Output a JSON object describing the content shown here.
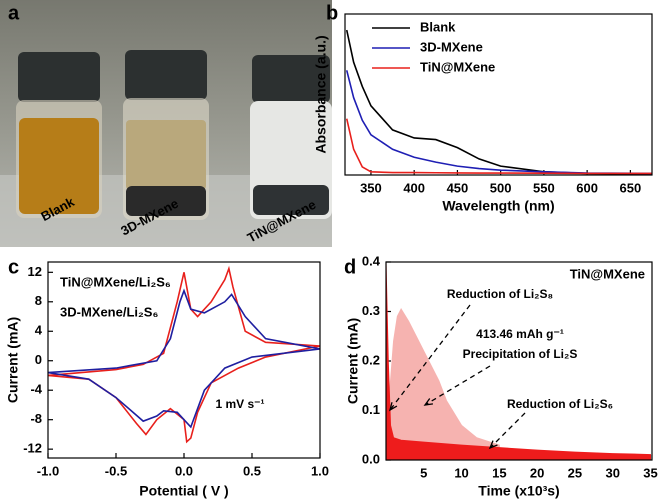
{
  "photo": {
    "panel": "a",
    "labels": [
      "Blank",
      "3D-MXene",
      "TiN@MXene"
    ],
    "label_colors": [
      "#111111",
      "#1a2fb0",
      "#c0182a"
    ]
  },
  "chart_data": [
    {
      "type": "line",
      "panel": "b",
      "x_label": "Wavelength (nm)",
      "y_label": "Absorbance (a.u.)",
      "x": [
        322,
        330,
        340,
        350,
        375,
        400,
        425,
        450,
        475,
        500,
        550,
        600,
        675
      ],
      "xlim": [
        320,
        675
      ],
      "xticks": [
        350,
        400,
        450,
        500,
        550,
        600,
        650
      ],
      "ylim": [
        0,
        1
      ],
      "series": [
        {
          "name": "Blank",
          "color": "#000000",
          "values": [
            0.9,
            0.7,
            0.55,
            0.43,
            0.28,
            0.23,
            0.22,
            0.17,
            0.1,
            0.055,
            0.02,
            0.01,
            0.005
          ]
        },
        {
          "name": "3D-MXene",
          "color": "#1f1fb4",
          "values": [
            0.65,
            0.48,
            0.34,
            0.25,
            0.16,
            0.11,
            0.08,
            0.055,
            0.04,
            0.03,
            0.02,
            0.012,
            0.01
          ]
        },
        {
          "name": "TiN@MXene",
          "color": "#e8201c",
          "values": [
            0.35,
            0.16,
            0.05,
            0.02,
            0.015,
            0.015,
            0.014,
            0.013,
            0.012,
            0.012,
            0.011,
            0.01,
            0.01
          ]
        }
      ]
    },
    {
      "type": "line",
      "panel": "c",
      "x_label": "Potential ( V )",
      "y_label": "Current (mA)",
      "xlim": [
        -1,
        1
      ],
      "xticks": [
        {
          "value": -1,
          "label": "-1.0"
        },
        -0.5,
        {
          "value": 0,
          "label": "0.0"
        },
        0.5,
        {
          "value": 1,
          "label": "1.0"
        }
      ],
      "ylim": [
        -13.2,
        13.4
      ],
      "yticks": [
        12,
        8,
        4,
        0,
        -4,
        -8,
        -12
      ],
      "annotations": [
        "1 mV s⁻¹"
      ],
      "series": [
        {
          "name": "TiN@MXene/Li₂S₆",
          "color": "#e8201c",
          "x": [
            -1,
            -0.5,
            -0.3,
            -0.15,
            -0.05,
            0,
            0.05,
            0.1,
            0.2,
            0.3,
            0.33,
            0.36,
            0.45,
            0.6,
            1,
            0.6,
            0.4,
            0.2,
            0.1,
            0.05,
            0.02,
            0,
            -0.1,
            -0.2,
            -0.28,
            -0.35,
            -0.5,
            -0.7,
            -1
          ],
          "values": [
            -2,
            -1.2,
            -0.5,
            1,
            8,
            12,
            7,
            6,
            8,
            11,
            12.5,
            10,
            4,
            2.5,
            2,
            0.5,
            -1,
            -3,
            -7,
            -10.5,
            -11,
            -8,
            -6.5,
            -8,
            -10,
            -8.5,
            -5,
            -2.5,
            -2
          ]
        },
        {
          "name": "3D-MXene/Li₂S₆",
          "color": "#1f1fa0",
          "x": [
            -1,
            -0.5,
            -0.2,
            -0.1,
            -0.03,
            0,
            0.05,
            0.15,
            0.3,
            0.35,
            0.45,
            0.6,
            1,
            0.5,
            0.3,
            0.15,
            0.05,
            0,
            -0.05,
            -0.15,
            -0.2,
            -0.3,
            -0.5,
            -0.7,
            -1
          ],
          "values": [
            -1.6,
            -1,
            0,
            3,
            8,
            9.5,
            7,
            6.5,
            8,
            9,
            6,
            3,
            1.6,
            0.5,
            -1,
            -4,
            -9,
            -8,
            -7,
            -6.8,
            -7.5,
            -8.2,
            -5,
            -2.5,
            -1.6
          ]
        }
      ]
    },
    {
      "type": "area",
      "panel": "d",
      "x_label": "Time (x10³s)",
      "y_label": "Current (mA)",
      "xlim": [
        0,
        35.2
      ],
      "xticks": [
        5,
        10,
        15,
        20,
        25,
        30,
        35
      ],
      "ylim": [
        0,
        0.4
      ],
      "yticks": [
        {
          "value": 0,
          "label": "0.0"
        },
        0.1,
        0.2,
        0.3,
        0.4
      ],
      "annotations": [
        "Reduction of Li₂S₈",
        "413.46 mAh g⁻¹",
        "Precipitation of Li₂S",
        "Reduction of Li₂S₆"
      ],
      "series": [
        {
          "color": "#f6b3b0",
          "x": [
            0.3,
            1,
            1.5,
            2,
            3,
            4,
            5,
            6,
            7,
            8,
            10,
            12,
            15
          ],
          "values": [
            0.1,
            0.24,
            0.29,
            0.305,
            0.28,
            0.25,
            0.22,
            0.19,
            0.16,
            0.12,
            0.07,
            0.045,
            0.03
          ]
        },
        {
          "name": "TiN@MXene",
          "color": "#ee1c1c",
          "x": [
            0,
            0.3,
            0.6,
            1,
            2,
            5,
            10,
            15,
            20,
            25,
            30,
            35
          ],
          "values": [
            0.4,
            0.2,
            0.07,
            0.045,
            0.04,
            0.036,
            0.03,
            0.025,
            0.02,
            0.016,
            0.013,
            0.011
          ]
        }
      ]
    }
  ]
}
